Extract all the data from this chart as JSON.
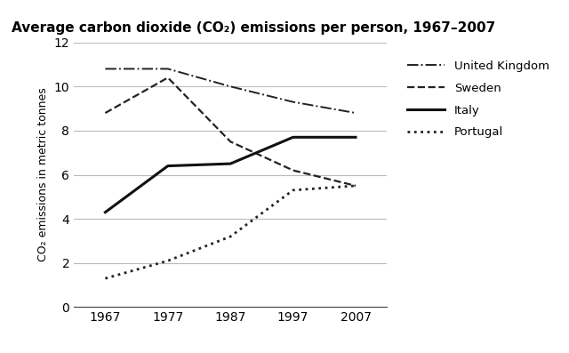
{
  "title": "Average carbon dioxide (CO₂) emissions per person, 1967–2007",
  "ylabel": "CO₂ emissions in metric tonnes",
  "years": [
    1967,
    1977,
    1987,
    1997,
    2007
  ],
  "series": {
    "United Kingdom": {
      "values": [
        10.8,
        10.8,
        10.0,
        9.3,
        8.8
      ],
      "linestyle": "-.",
      "linewidth": 1.4,
      "color": "#222222"
    },
    "Sweden": {
      "values": [
        8.8,
        10.4,
        7.5,
        6.2,
        5.5
      ],
      "linestyle": "--",
      "linewidth": 1.6,
      "color": "#222222"
    },
    "Italy": {
      "values": [
        4.3,
        6.4,
        6.5,
        7.7,
        7.7
      ],
      "linestyle": "-",
      "linewidth": 2.2,
      "color": "#111111"
    },
    "Portugal": {
      "values": [
        1.3,
        2.1,
        3.2,
        5.3,
        5.5
      ],
      "linestyle": ":",
      "linewidth": 2.0,
      "color": "#222222"
    }
  },
  "xlim": [
    1962,
    2012
  ],
  "ylim": [
    0,
    12
  ],
  "yticks": [
    0,
    2,
    4,
    6,
    8,
    10,
    12
  ],
  "xticks": [
    1967,
    1977,
    1987,
    1997,
    2007
  ],
  "background_color": "#ffffff",
  "grid_color": "#bbbbbb",
  "title_fontsize": 11,
  "tick_fontsize": 10,
  "ylabel_fontsize": 9
}
